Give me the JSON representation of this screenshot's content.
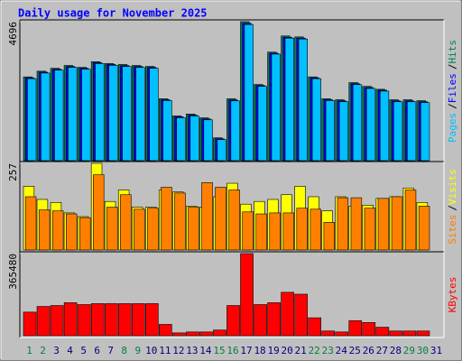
{
  "title": "Daily usage for November 2025",
  "categories": [
    "1",
    "2",
    "3",
    "4",
    "5",
    "6",
    "7",
    "8",
    "9",
    "10",
    "11",
    "12",
    "13",
    "14",
    "15",
    "16",
    "17",
    "18",
    "19",
    "20",
    "21",
    "22",
    "23",
    "24",
    "25",
    "26",
    "27",
    "28",
    "29",
    "30",
    "31"
  ],
  "category_colors": [
    "#008040",
    "#008040",
    "#000080",
    "#000080",
    "#000080",
    "#000080",
    "#000080",
    "#008040",
    "#008040",
    "#000080",
    "#000080",
    "#000080",
    "#000080",
    "#000080",
    "#008040",
    "#008040",
    "#000080",
    "#000080",
    "#000080",
    "#000080",
    "#000080",
    "#008040",
    "#008040",
    "#000080",
    "#000080",
    "#000080",
    "#000080",
    "#000080",
    "#008040",
    "#008040",
    "#000080"
  ],
  "legend_separator": "/",
  "chart_data": [
    {
      "type": "bar",
      "ylim": [
        0,
        4696
      ],
      "yticks": [
        4696
      ],
      "series": [
        {
          "name": "Hits",
          "color": "#00805c",
          "values": [
            2830,
            3023,
            3120,
            3216,
            3152,
            3345,
            3281,
            3249,
            3216,
            3184,
            2091,
            1512,
            1576,
            1447,
            772,
            2091,
            4696,
            2573,
            3667,
            4213,
            4181,
            2830,
            2091,
            2058,
            2637,
            2509,
            2412,
            2058,
            2058,
            2026,
            null
          ]
        },
        {
          "name": "Files",
          "color": "#0000ff",
          "values": [
            2800,
            2990,
            3090,
            3180,
            3120,
            3310,
            3250,
            3210,
            3180,
            3150,
            2060,
            1480,
            1540,
            1410,
            740,
            2050,
            4640,
            2540,
            3630,
            4170,
            4140,
            2800,
            2060,
            2020,
            2600,
            2470,
            2380,
            2020,
            2020,
            1990,
            null
          ]
        },
        {
          "name": "Pages",
          "color": "#00c0ff",
          "values": [
            2770,
            2960,
            3060,
            3150,
            3090,
            3280,
            3220,
            3180,
            3150,
            3120,
            2030,
            1450,
            1510,
            1380,
            710,
            2020,
            4600,
            2510,
            3600,
            4140,
            4110,
            2770,
            2030,
            1990,
            2570,
            2440,
            2350,
            1990,
            1990,
            1960,
            null
          ]
        }
      ]
    },
    {
      "type": "bar",
      "ylim": [
        0,
        257
      ],
      "yticks": [
        257
      ],
      "series": [
        {
          "name": "Visits",
          "color": "#ffff00",
          "values": [
            189,
            150,
            141,
            110,
            99,
            257,
            144,
            178,
            127,
            127,
            178,
            172,
            130,
            127,
            158,
            198,
            136,
            144,
            150,
            164,
            189,
            158,
            116,
            158,
            130,
            133,
            153,
            158,
            184,
            141,
            null
          ]
        },
        {
          "name": "Sites",
          "color": "#ff8000",
          "values": [
            158,
            119,
            116,
            107,
            96,
            223,
            127,
            164,
            121,
            124,
            186,
            169,
            127,
            200,
            186,
            178,
            113,
            107,
            110,
            110,
            124,
            121,
            82,
            155,
            155,
            124,
            153,
            158,
            178,
            130,
            null
          ]
        }
      ]
    },
    {
      "type": "bar",
      "ylim": [
        0,
        365480
      ],
      "yticks": [
        365480
      ],
      "series": [
        {
          "name": "KBytes",
          "color": "#ff0000",
          "values": [
            105023,
            130230,
            134429,
            147032,
            138630,
            142831,
            142831,
            142831,
            142831,
            142831,
            50411,
            12603,
            16804,
            16804,
            25206,
            134429,
            365480,
            138630,
            147032,
            193243,
            184841,
            79818,
            21005,
            16804,
            67214,
            58813,
            37808,
            21005,
            21005,
            21005,
            null
          ]
        }
      ]
    }
  ]
}
